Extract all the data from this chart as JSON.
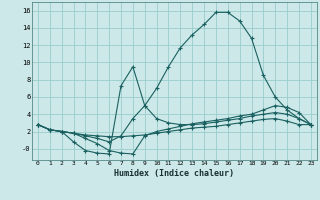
{
  "xlabel": "Humidex (Indice chaleur)",
  "bg_color": "#cce8e8",
  "grid_color": "#99cccc",
  "line_color": "#1a6060",
  "xlim": [
    -0.5,
    23.5
  ],
  "ylim": [
    -1.3,
    17.0
  ],
  "xticks": [
    0,
    1,
    2,
    3,
    4,
    5,
    6,
    7,
    8,
    9,
    10,
    11,
    12,
    13,
    14,
    15,
    16,
    17,
    18,
    19,
    20,
    21,
    22,
    23
  ],
  "yticks": [
    0,
    2,
    4,
    6,
    8,
    10,
    12,
    14,
    16
  ],
  "ytick_labels": [
    "-0",
    "2",
    "4",
    "6",
    "8",
    "10",
    "12",
    "14",
    "16"
  ],
  "lines": [
    {
      "y": [
        2.8,
        2.2,
        2.0,
        1.8,
        1.6,
        1.5,
        1.4,
        1.4,
        1.5,
        1.6,
        1.8,
        2.0,
        2.2,
        2.4,
        2.5,
        2.6,
        2.8,
        3.0,
        3.2,
        3.4,
        3.5,
        3.2,
        2.8,
        2.8
      ]
    },
    {
      "y": [
        2.8,
        2.2,
        2.0,
        1.8,
        1.2,
        0.6,
        -0.2,
        -0.5,
        -0.6,
        1.5,
        2.0,
        2.3,
        2.6,
        2.9,
        3.1,
        3.3,
        3.5,
        3.8,
        4.0,
        4.5,
        5.0,
        4.8,
        4.2,
        2.8
      ]
    },
    {
      "y": [
        2.8,
        2.2,
        2.0,
        0.8,
        -0.2,
        -0.5,
        -0.6,
        7.3,
        9.5,
        5.0,
        3.5,
        3.0,
        2.8,
        2.8,
        2.9,
        3.1,
        3.3,
        3.5,
        3.8,
        4.0,
        4.2,
        4.0,
        3.5,
        2.8
      ]
    },
    {
      "y": [
        2.8,
        2.2,
        2.0,
        1.8,
        1.5,
        1.2,
        0.8,
        1.5,
        3.5,
        5.0,
        7.0,
        9.5,
        11.7,
        13.2,
        14.4,
        15.8,
        15.8,
        14.8,
        12.8,
        8.5,
        6.0,
        4.5,
        3.5,
        2.8
      ]
    }
  ]
}
